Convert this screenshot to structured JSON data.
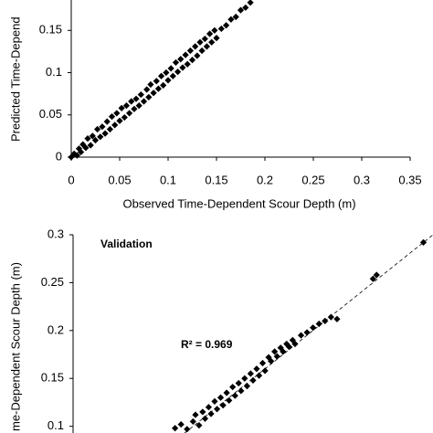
{
  "chart_data": [
    {
      "type": "scatter",
      "xlabel": "Observed Time-Dependent Scour Depth (m)",
      "ylabel": "Predicted Time-Depend",
      "color": "#000000",
      "xlim": [
        0,
        0.35
      ],
      "xticks": [
        0,
        0.05,
        0.1,
        0.15,
        0.2,
        0.25,
        0.3,
        0.35
      ],
      "ylim": [
        0,
        0.186
      ],
      "yticks": [
        0,
        0.05,
        0.1,
        0.15
      ],
      "x": [
        0,
        0.003,
        0.006,
        0.008,
        0.01,
        0.012,
        0.015,
        0.017,
        0.02,
        0.022,
        0.025,
        0.027,
        0.03,
        0.032,
        0.035,
        0.037,
        0.04,
        0.042,
        0.045,
        0.047,
        0.05,
        0.052,
        0.055,
        0.057,
        0.06,
        0.062,
        0.065,
        0.067,
        0.07,
        0.072,
        0.075,
        0.078,
        0.08,
        0.082,
        0.085,
        0.088,
        0.09,
        0.093,
        0.095,
        0.098,
        0.1,
        0.103,
        0.105,
        0.108,
        0.11,
        0.113,
        0.115,
        0.118,
        0.12,
        0.123,
        0.125,
        0.128,
        0.13,
        0.133,
        0.135,
        0.138,
        0.14,
        0.143,
        0.145,
        0.148,
        0.15,
        0.155,
        0.16,
        0.165,
        0.17,
        0.175,
        0.18,
        0.185
      ],
      "values": [
        0,
        0.004,
        0.002,
        0.01,
        0.006,
        0.015,
        0.011,
        0.022,
        0.014,
        0.025,
        0.02,
        0.033,
        0.024,
        0.036,
        0.028,
        0.042,
        0.033,
        0.048,
        0.038,
        0.052,
        0.043,
        0.058,
        0.047,
        0.061,
        0.052,
        0.066,
        0.057,
        0.069,
        0.061,
        0.074,
        0.066,
        0.08,
        0.071,
        0.086,
        0.076,
        0.09,
        0.081,
        0.096,
        0.085,
        0.1,
        0.091,
        0.105,
        0.096,
        0.112,
        0.101,
        0.116,
        0.106,
        0.121,
        0.11,
        0.126,
        0.115,
        0.131,
        0.12,
        0.136,
        0.126,
        0.14,
        0.131,
        0.146,
        0.136,
        0.15,
        0.141,
        0.152,
        0.156,
        0.163,
        0.166,
        0.174,
        0.177,
        0.183
      ]
    },
    {
      "type": "scatter",
      "ylabel": "me-Dependent Scour Depth (m)",
      "color": "#000000",
      "annotations": [
        "Validation",
        "R² = 0.969"
      ],
      "xlim": [
        0,
        0.3
      ],
      "ylim": [
        0.093,
        0.3
      ],
      "yticks": [
        0.1,
        0.15,
        0.2,
        0.25,
        0.3
      ],
      "x": [
        0.085,
        0.09,
        0.095,
        0.1,
        0.102,
        0.105,
        0.108,
        0.11,
        0.113,
        0.115,
        0.118,
        0.12,
        0.123,
        0.125,
        0.128,
        0.13,
        0.133,
        0.135,
        0.138,
        0.14,
        0.143,
        0.145,
        0.148,
        0.15,
        0.153,
        0.155,
        0.158,
        0.16,
        0.163,
        0.165,
        0.168,
        0.17,
        0.173,
        0.175,
        0.178,
        0.18,
        0.183,
        0.185,
        0.19,
        0.195,
        0.2,
        0.205,
        0.21,
        0.215,
        0.22,
        0.25,
        0.253,
        0.292
      ],
      "values": [
        0.098,
        0.102,
        0.097,
        0.105,
        0.112,
        0.101,
        0.115,
        0.108,
        0.12,
        0.113,
        0.126,
        0.118,
        0.13,
        0.122,
        0.135,
        0.127,
        0.141,
        0.132,
        0.145,
        0.137,
        0.15,
        0.142,
        0.155,
        0.148,
        0.16,
        0.153,
        0.166,
        0.158,
        0.172,
        0.168,
        0.178,
        0.173,
        0.182,
        0.178,
        0.186,
        0.183,
        0.19,
        0.186,
        0.195,
        0.198,
        0.203,
        0.207,
        0.21,
        0.214,
        0.212,
        0.254,
        0.258,
        0.292
      ]
    }
  ]
}
